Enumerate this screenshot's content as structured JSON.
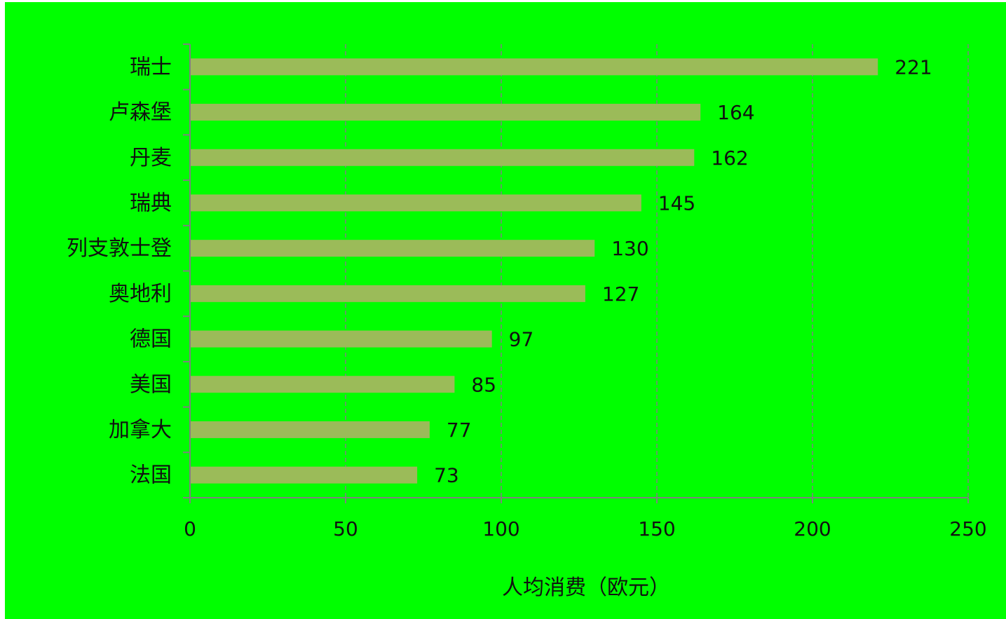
{
  "chart_data": {
    "type": "bar",
    "orientation": "horizontal",
    "categories": [
      "瑞士",
      "卢森堡",
      "丹麦",
      "瑞典",
      "列支敦士登",
      "奥地利",
      "德国",
      "美国",
      "加拿大",
      "法国"
    ],
    "values": [
      221,
      164,
      162,
      145,
      130,
      127,
      97,
      85,
      77,
      73
    ],
    "data_labels": [
      "221",
      "164",
      "162",
      "145",
      "130",
      "127",
      "97",
      "85",
      "77",
      "73"
    ],
    "xlabel": "人均消费（欧元）",
    "ylabel": "",
    "xlim": [
      0,
      250
    ],
    "x_ticks": [
      0,
      50,
      100,
      150,
      200,
      250
    ],
    "x_tick_labels": [
      "0",
      "50",
      "100",
      "150",
      "200",
      "250"
    ],
    "grid": "vertical dashed",
    "legend": "none",
    "colors": {
      "background": "#00ff00",
      "bar": "#9bbb59",
      "axis": "#808080",
      "grid": "#808080",
      "text": "#111111"
    }
  }
}
